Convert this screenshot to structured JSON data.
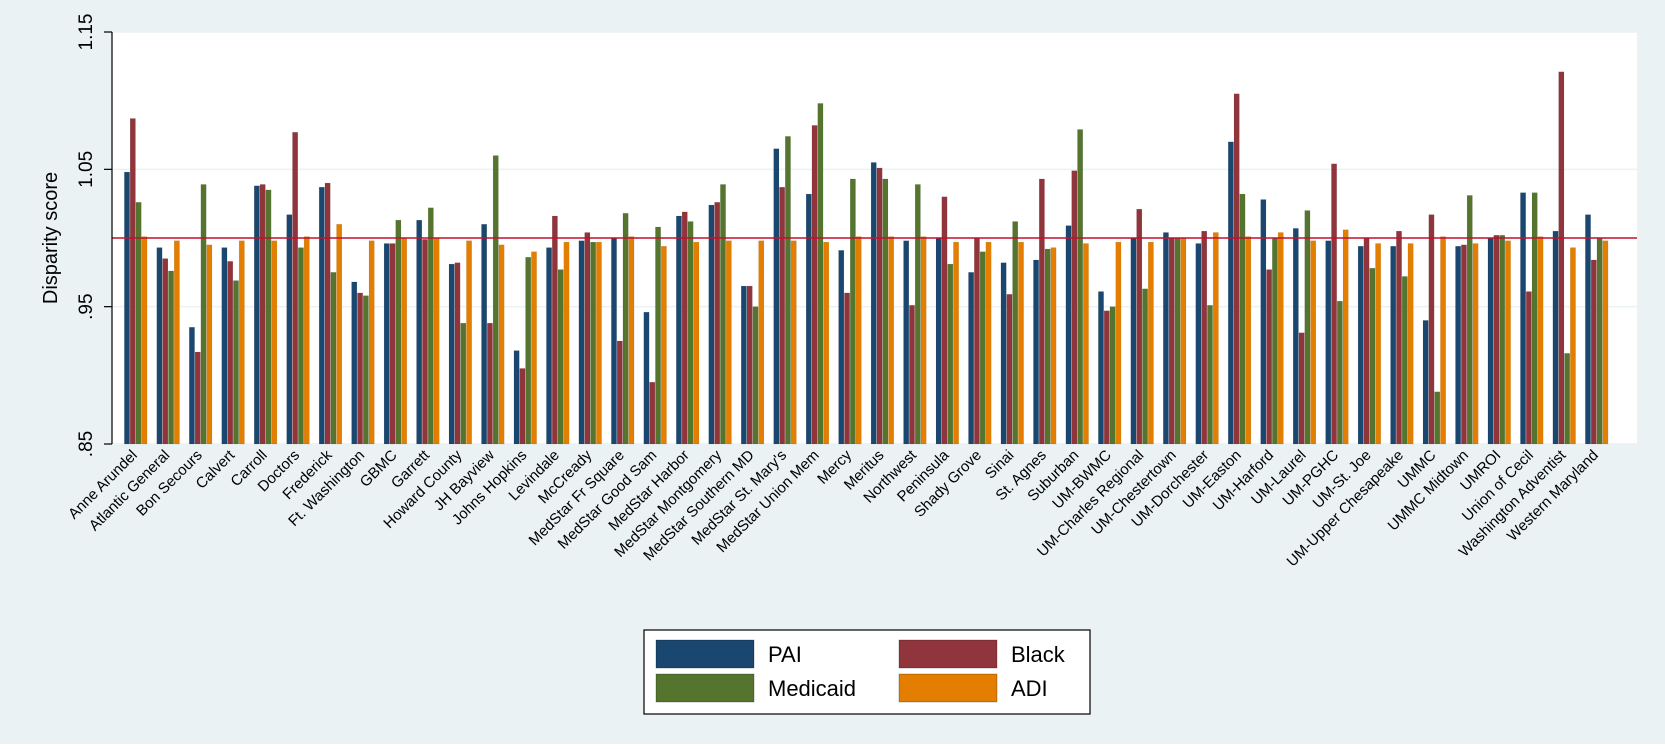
{
  "chart_data": {
    "type": "bar",
    "title": "",
    "xlabel": "",
    "ylabel": "Disparity score",
    "ylim": [
      0.85,
      1.15
    ],
    "yticks": [
      ".85",
      ".95",
      "1.05",
      "1.15"
    ],
    "reference_line": 1.0,
    "grid": true,
    "legend_position": "bottom",
    "colors": {
      "background_outer": "#eaf2f3",
      "background_plot": "#ffffff",
      "reference_line": "#c0102e",
      "PAI": "#1a476f",
      "Black": "#90353b",
      "Medicaid": "#55752f",
      "ADI": "#e37e00"
    },
    "categories": [
      "Anne Arundel",
      "Atlantic General",
      "Bon Secours",
      "Calvert",
      "Carroll",
      "Doctors",
      "Frederick",
      "Ft. Washington",
      "GBMC",
      "Garrett",
      "Howard County",
      "JH Bayview",
      "Johns Hopkins",
      "Levindale",
      "McCready",
      "MedStar Fr Square",
      "MedStar Good Sam",
      "MedStar Harbor",
      "MedStar Montgomery",
      "MedStar Southern MD",
      "MedStar St. Mary's",
      "MedStar Union Mem",
      "Mercy",
      "Meritus",
      "Northwest",
      "Peninsula",
      "Shady Grove",
      "Sinai",
      "St. Agnes",
      "Suburban",
      "UM-BWMC",
      "UM-Charles Regional",
      "UM-Chestertown",
      "UM-Dorchester",
      "UM-Easton",
      "UM-Harford",
      "UM-Laurel",
      "UM-PGHC",
      "UM-St. Joe",
      "UM-Upper Chesapeake",
      "UMMC",
      "UMMC Midtown",
      "UMROI",
      "Union of Cecil",
      "Washington Adventist",
      "Western Maryland"
    ],
    "series": [
      {
        "name": "PAI",
        "values": [
          1.048,
          0.993,
          0.935,
          0.993,
          1.038,
          1.017,
          1.037,
          0.968,
          0.996,
          1.013,
          0.981,
          1.01,
          0.918,
          0.993,
          0.998,
          1.0,
          0.946,
          1.016,
          1.024,
          0.965,
          1.065,
          1.032,
          0.991,
          1.055,
          0.998,
          1.0,
          0.975,
          0.982,
          0.984,
          1.009,
          0.961,
          1.0,
          1.004,
          0.996,
          1.07,
          1.028,
          1.007,
          0.998,
          0.994,
          0.994,
          0.94,
          0.994,
          1.0,
          1.033,
          1.005,
          1.017
        ]
      },
      {
        "name": "Black",
        "values": [
          1.087,
          0.985,
          0.917,
          0.983,
          1.039,
          1.077,
          1.04,
          0.96,
          0.996,
          0.999,
          0.982,
          0.938,
          0.905,
          1.016,
          1.004,
          0.925,
          0.895,
          1.019,
          1.026,
          0.965,
          1.037,
          1.082,
          0.96,
          1.051,
          0.951,
          1.03,
          1.0,
          0.959,
          1.043,
          1.049,
          0.947,
          1.021,
          1.0,
          1.005,
          1.105,
          0.977,
          0.931,
          1.054,
          1.0,
          1.005,
          1.017,
          0.995,
          1.002,
          0.961,
          1.121,
          0.984
        ]
      },
      {
        "name": "Medicaid",
        "values": [
          1.026,
          0.976,
          1.039,
          0.969,
          1.035,
          0.993,
          0.975,
          0.958,
          1.013,
          1.022,
          0.938,
          1.06,
          0.986,
          0.977,
          0.997,
          1.018,
          1.008,
          1.012,
          1.039,
          0.95,
          1.074,
          1.098,
          1.043,
          1.043,
          1.039,
          0.981,
          0.99,
          1.012,
          0.992,
          1.079,
          0.95,
          0.963,
          1.0,
          0.951,
          1.032,
          1.0,
          1.02,
          0.954,
          0.978,
          0.972,
          0.888,
          1.031,
          1.002,
          1.033,
          0.916,
          1.0
        ]
      },
      {
        "name": "ADI",
        "values": [
          1.001,
          0.998,
          0.995,
          0.998,
          0.998,
          1.001,
          1.01,
          0.998,
          1.0,
          1.0,
          0.998,
          0.995,
          0.99,
          0.997,
          0.997,
          1.001,
          0.994,
          0.997,
          0.998,
          0.998,
          0.998,
          0.997,
          1.001,
          1.001,
          1.001,
          0.997,
          0.997,
          0.997,
          0.993,
          0.996,
          0.997,
          0.997,
          1.0,
          1.004,
          1.001,
          1.004,
          0.998,
          1.006,
          0.996,
          0.996,
          1.001,
          0.996,
          0.998,
          1.001,
          0.993,
          0.998
        ]
      }
    ]
  }
}
